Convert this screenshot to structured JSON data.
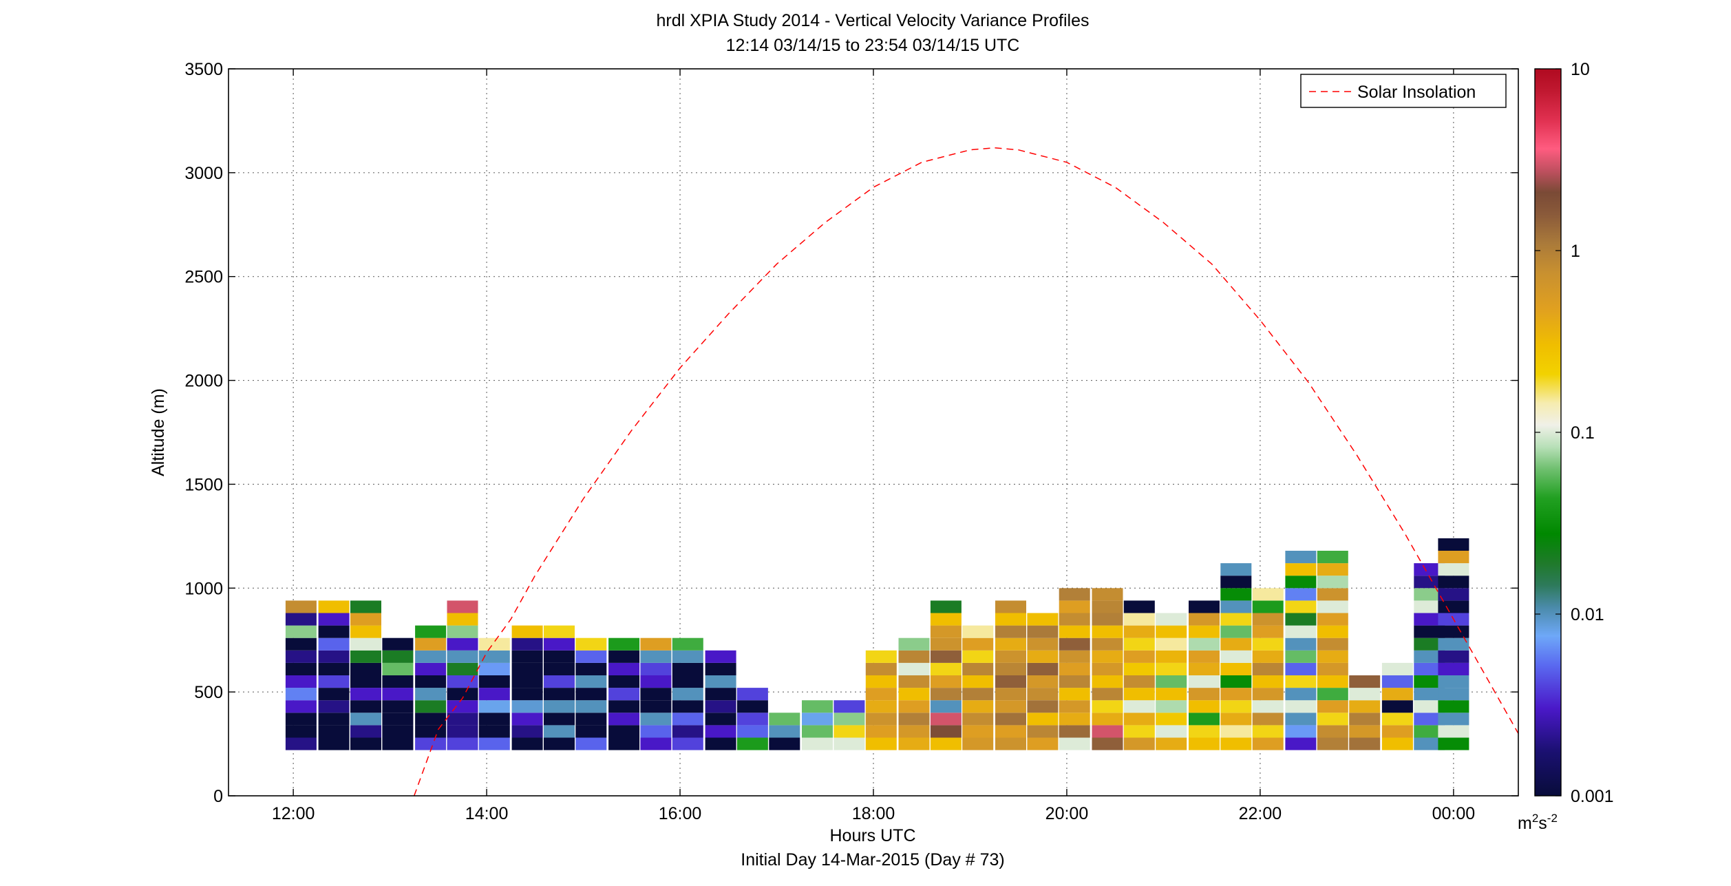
{
  "chart_data": {
    "type": "heatmap",
    "title": "hrdl XPIA Study 2014 - Vertical Velocity Variance Profiles",
    "subtitle": "12:14 03/14/15 to 23:54 03/14/15  UTC",
    "xlabel": "Hours UTC",
    "xlabel2": "Initial Day 14-Mar-2015 (Day # 73)",
    "ylabel": "Altitude (m)",
    "xlim": [
      11.33,
      24.67
    ],
    "ylim": [
      0,
      3500
    ],
    "x_ticks": [
      12,
      14,
      16,
      18,
      20,
      22,
      24
    ],
    "x_tick_labels": [
      "12:00",
      "14:00",
      "16:00",
      "18:00",
      "20:00",
      "22:00",
      "00:00"
    ],
    "y_ticks": [
      0,
      500,
      1000,
      1500,
      2000,
      2500,
      3000,
      3500
    ],
    "y_tick_labels": [
      "0",
      "500",
      "1000",
      "1500",
      "2000",
      "2500",
      "3000",
      "3500"
    ],
    "grid": true,
    "legend": {
      "placement": "top-right",
      "entries": [
        "Solar Insolation"
      ]
    },
    "colorbar": {
      "scale": "log",
      "range": [
        0.001,
        10
      ],
      "ticks": [
        0.001,
        0.01,
        0.1,
        1,
        10
      ],
      "tick_labels": [
        "0.001",
        "0.01",
        "0.1",
        "1",
        "10"
      ],
      "unit_base": "m",
      "unit_exp1": "2",
      "unit_mid": "s",
      "unit_exp2": "-2"
    },
    "solar_insolation": {
      "style": "dashed",
      "color": "#ff0000",
      "x": [
        13.25,
        13.5,
        13.75,
        14,
        14.25,
        14.5,
        15,
        15.5,
        16,
        16.5,
        17,
        17.5,
        18,
        18.5,
        19,
        19.25,
        19.5,
        20,
        20.5,
        21,
        21.5,
        22,
        22.5,
        23,
        23.5,
        24,
        24.67
      ],
      "y": [
        0,
        320,
        470,
        690,
        850,
        1060,
        1430,
        1760,
        2060,
        2320,
        2560,
        2760,
        2930,
        3050,
        3110,
        3120,
        3110,
        3050,
        2930,
        2760,
        2560,
        2290,
        1990,
        1640,
        1260,
        850,
        300
      ]
    },
    "profile_times": [
      12.08,
      12.42,
      12.75,
      13.08,
      13.42,
      13.75,
      14.08,
      14.42,
      14.75,
      15.08,
      15.42,
      15.75,
      16.08,
      16.42,
      16.75,
      17.08,
      17.42,
      17.75,
      18.08,
      18.42,
      18.75,
      19.08,
      19.42,
      19.75,
      20.08,
      20.42,
      20.75,
      21.08,
      21.42,
      21.75,
      22.08,
      22.42,
      22.75,
      23.08,
      23.42,
      23.75,
      24.0
    ],
    "range_gates_m": [
      250,
      310,
      370,
      430,
      490,
      550,
      610,
      670,
      730,
      790,
      850,
      910,
      970,
      1030,
      1090,
      1150,
      1210
    ],
    "variance_profiles": [
      [
        0.002,
        0.001,
        0.001,
        0.003,
        0.006,
        0.003,
        0.001,
        0.002,
        0.001,
        0.07,
        0.002,
        0.8
      ],
      [
        0.001,
        0.001,
        0.001,
        0.002,
        0.001,
        0.004,
        0.001,
        0.002,
        0.005,
        0.001,
        0.003,
        0.3
      ],
      [
        0.001,
        0.002,
        0.01,
        0.001,
        0.003,
        0.001,
        0.001,
        0.02,
        0.1,
        0.3,
        0.5,
        0.02
      ],
      [
        0.001,
        0.001,
        0.001,
        0.001,
        0.003,
        0.001,
        0.06,
        0.02,
        0.001
      ],
      [
        0.004,
        0.001,
        0.001,
        0.02,
        0.01,
        0.001,
        0.003,
        0.01,
        0.5,
        0.04
      ],
      [
        0.004,
        0.002,
        0.002,
        0.003,
        0.001,
        0.004,
        0.02,
        0.01,
        0.003,
        0.07,
        0.3,
        3
      ],
      [
        0.005,
        0.001,
        0.001,
        0.008,
        0.003,
        0.001,
        0.007,
        0.01,
        0.15
      ],
      [
        0.001,
        0.002,
        0.003,
        0.009,
        0.001,
        0.001,
        0.001,
        0.001,
        0.002,
        0.3
      ],
      [
        0.001,
        0.01,
        0.001,
        0.01,
        0.001,
        0.004,
        0.001,
        0.001,
        0.003,
        0.2
      ],
      [
        0.005,
        0.001,
        0.001,
        0.01,
        0.001,
        0.01,
        0.001,
        0.005,
        0.2
      ],
      [
        0.001,
        0.001,
        0.003,
        0.001,
        0.004,
        0.001,
        0.003,
        0.001,
        0.04
      ],
      [
        0.003,
        0.005,
        0.01,
        0.001,
        0.001,
        0.003,
        0.004,
        0.01,
        0.5
      ],
      [
        0.004,
        0.002,
        0.005,
        0.001,
        0.01,
        0.001,
        0.001,
        0.01,
        0.05
      ],
      [
        0.001,
        0.003,
        0.001,
        0.002,
        0.001,
        0.01,
        0.001,
        0.003
      ],
      [
        0.04,
        0.005,
        0.004,
        0.001,
        0.004
      ],
      [
        0.001,
        0.01,
        0.06
      ],
      [
        0.1,
        0.06,
        0.008,
        0.06
      ],
      [
        0.1,
        0.2,
        0.07,
        0.004
      ],
      [
        0.3,
        0.5,
        0.7,
        0.4,
        0.5,
        0.3,
        0.8,
        0.2
      ],
      [
        0.4,
        0.6,
        1.0,
        0.5,
        0.3,
        0.8,
        0.1,
        0.9,
        0.07
      ],
      [
        0.3,
        2.0,
        3.0,
        0.01,
        1.0,
        0.5,
        0.2,
        1.5,
        0.7,
        0.6,
        0.3,
        0.02
      ],
      [
        0.6,
        0.5,
        0.8,
        0.4,
        1.0,
        0.3,
        0.9,
        0.2,
        0.5,
        0.15
      ],
      [
        0.7,
        0.5,
        1.2,
        0.6,
        0.8,
        1.5,
        0.9,
        0.7,
        0.4,
        1.0,
        0.3,
        0.8
      ],
      [
        0.5,
        0.9,
        0.3,
        1.2,
        0.8,
        0.6,
        1.5,
        0.4,
        0.7,
        1.1,
        0.3
      ],
      [
        0.1,
        1.3,
        0.4,
        0.6,
        0.3,
        0.9,
        0.5,
        0.7,
        1.5,
        0.3,
        0.8,
        0.5,
        1.0
      ],
      [
        1.5,
        3.0,
        0.4,
        0.2,
        0.9,
        0.3,
        0.6,
        0.4,
        0.8,
        0.3,
        1.0,
        0.9,
        0.8
      ],
      [
        0.6,
        0.2,
        0.4,
        0.1,
        0.3,
        0.8,
        0.25,
        0.5,
        0.2,
        0.4,
        0.15,
        0.001
      ],
      [
        0.4,
        0.1,
        0.25,
        0.08,
        0.3,
        0.06,
        0.2,
        0.35,
        0.15,
        0.3,
        0.1
      ],
      [
        0.3,
        0.2,
        0.04,
        0.3,
        0.6,
        0.1,
        0.4,
        0.5,
        0.08,
        0.3,
        0.6,
        0.001
      ],
      [
        0.3,
        0.15,
        0.4,
        0.2,
        0.5,
        0.03,
        0.3,
        0.1,
        0.4,
        0.06,
        0.2,
        0.01,
        0.03,
        0.001,
        0.01
      ],
      [
        0.5,
        0.2,
        0.8,
        0.1,
        0.6,
        0.3,
        0.9,
        0.4,
        0.2,
        0.5,
        0.7,
        0.04,
        0.15
      ],
      [
        0.003,
        0.007,
        0.01,
        0.1,
        0.01,
        0.2,
        0.005,
        0.06,
        0.01,
        0.1,
        0.02,
        0.2,
        0.006,
        0.03,
        0.3,
        0.01
      ],
      [
        1.0,
        0.8,
        0.2,
        0.5,
        0.05,
        0.3,
        0.6,
        0.4,
        0.8,
        0.3,
        0.5,
        0.1,
        0.7,
        0.08,
        0.4,
        0.05
      ],
      [
        1.2,
        0.6,
        1.0,
        0.4,
        0.1,
        1.5
      ],
      [
        0.3,
        0.5,
        0.2,
        0.001,
        0.4,
        0.005,
        0.1
      ],
      [
        0.01,
        0.05,
        0.005,
        0.1,
        0.01,
        0.03,
        0.005,
        0.01,
        0.02,
        0.001,
        0.003,
        0.1,
        0.07,
        0.002,
        0.003
      ],
      [
        0.03,
        0.1,
        0.01,
        0.03,
        0.01,
        0.01,
        0.003,
        0.002,
        0.01,
        0.001,
        0.004,
        0.001,
        0.002,
        0.001,
        0.1,
        0.5,
        0.001
      ]
    ]
  }
}
